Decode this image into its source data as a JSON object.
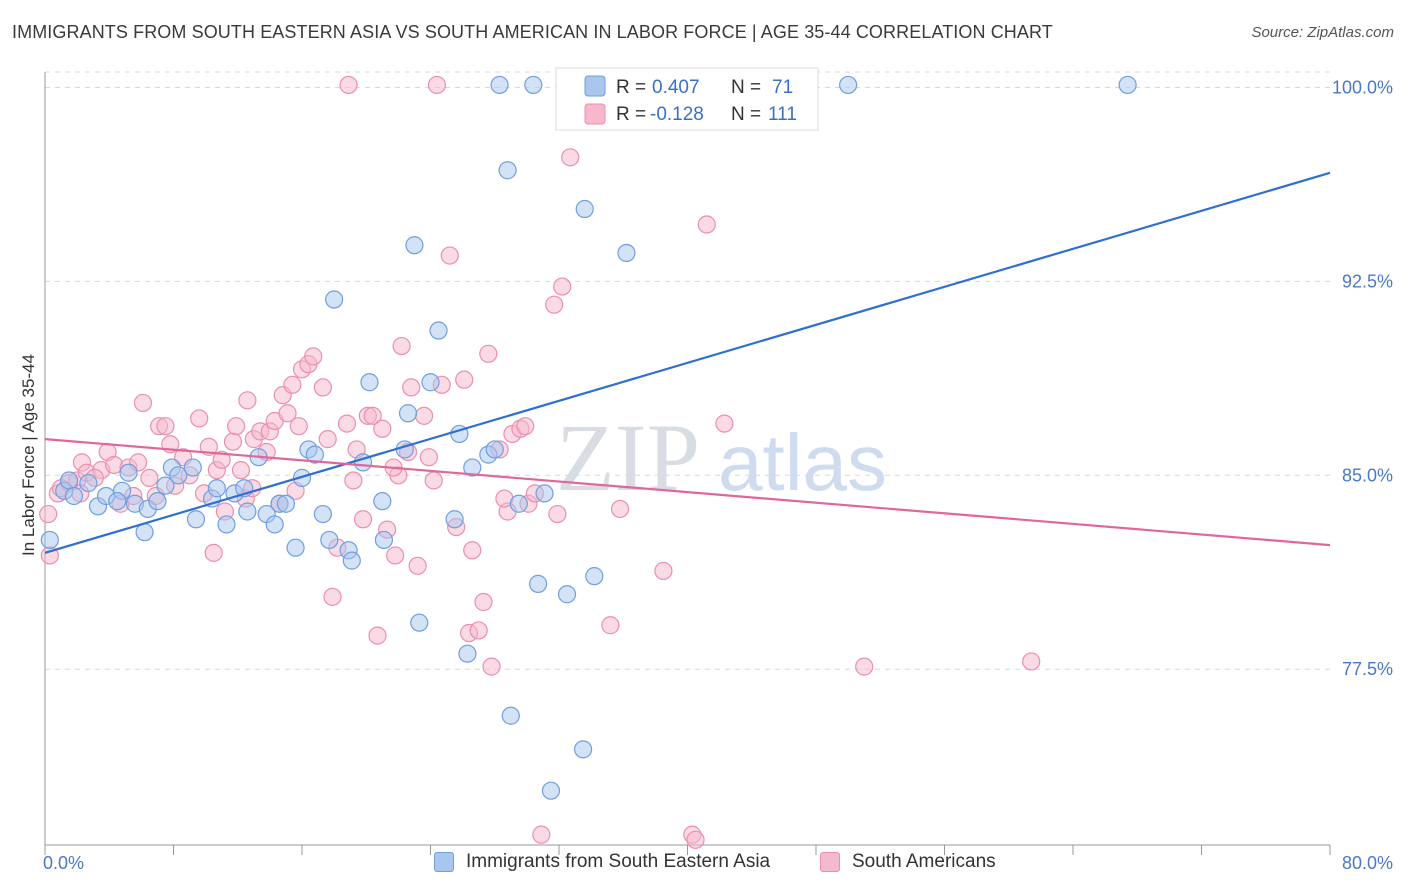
{
  "title": "IMMIGRANTS FROM SOUTH EASTERN ASIA VS SOUTH AMERICAN IN LABOR FORCE | AGE 35-44 CORRELATION CHART",
  "source": "Source: ZipAtlas.com",
  "watermark": {
    "zip": "ZIP",
    "atlas": "atlas"
  },
  "colors": {
    "blue_fill": "#a9c6ee",
    "blue_stroke": "#6f9fe0",
    "blue_line": "#2f6fd0",
    "pink_fill": "#f6b8cb",
    "pink_stroke": "#ec8fac",
    "pink_line": "#e0679a",
    "tick": "#4a78c8",
    "grid": "#d8d8d8"
  },
  "legend": {
    "blue": {
      "r_label": "R =",
      "r_value": "0.407",
      "n_label": "N =",
      "n_value": "71"
    },
    "pink": {
      "r_label": "R =",
      "r_value": "-0.128",
      "n_label": "N =",
      "n_value": "111"
    }
  },
  "chart_data": {
    "type": "scatter",
    "xlabel": "",
    "ylabel": "In Labor Force | Age 35-44",
    "xlim": [
      0,
      80
    ],
    "ylim": [
      70.7,
      100.6
    ],
    "x_tick_labels": [
      "0.0%",
      "80.0%"
    ],
    "y_ticks": [
      77.5,
      85.0,
      92.5,
      100.0
    ],
    "y_tick_labels": [
      "77.5%",
      "85.0%",
      "92.5%",
      "100.0%"
    ],
    "grid": true,
    "legend_position": "top-center",
    "series": [
      {
        "name": "Immigrants from South Eastern Asia",
        "color": "blue",
        "trend": [
          [
            0,
            82.0
          ],
          [
            80,
            96.7
          ]
        ],
        "points": [
          [
            0.3,
            82.5
          ],
          [
            1.2,
            84.4
          ],
          [
            1.5,
            84.8
          ],
          [
            1.8,
            84.2
          ],
          [
            2.7,
            84.7
          ],
          [
            3.3,
            83.8
          ],
          [
            3.8,
            84.2
          ],
          [
            4.8,
            84.4
          ],
          [
            5.2,
            85.1
          ],
          [
            5.6,
            83.9
          ],
          [
            6.2,
            82.8
          ],
          [
            6.4,
            83.7
          ],
          [
            7.0,
            84.0
          ],
          [
            7.9,
            85.3
          ],
          [
            8.3,
            85.0
          ],
          [
            9.2,
            85.3
          ],
          [
            9.4,
            83.3
          ],
          [
            10.4,
            84.1
          ],
          [
            10.7,
            84.5
          ],
          [
            11.3,
            83.1
          ],
          [
            11.8,
            84.3
          ],
          [
            12.4,
            84.5
          ],
          [
            12.6,
            83.6
          ],
          [
            13.3,
            85.7
          ],
          [
            13.8,
            83.5
          ],
          [
            14.3,
            83.1
          ],
          [
            14.6,
            83.9
          ],
          [
            15.0,
            83.9
          ],
          [
            15.6,
            82.2
          ],
          [
            16.4,
            86.0
          ],
          [
            16.8,
            85.8
          ],
          [
            17.3,
            83.5
          ],
          [
            17.7,
            82.5
          ],
          [
            18.0,
            91.8
          ],
          [
            18.9,
            82.1
          ],
          [
            19.1,
            81.7
          ],
          [
            19.8,
            85.5
          ],
          [
            20.2,
            88.6
          ],
          [
            21.0,
            84.0
          ],
          [
            21.1,
            82.5
          ],
          [
            22.4,
            86.0
          ],
          [
            22.6,
            87.4
          ],
          [
            23.0,
            93.9
          ],
          [
            23.3,
            79.3
          ],
          [
            24.0,
            88.6
          ],
          [
            24.5,
            90.6
          ],
          [
            25.5,
            83.3
          ],
          [
            25.8,
            86.6
          ],
          [
            26.3,
            78.1
          ],
          [
            26.6,
            85.3
          ],
          [
            27.6,
            85.8
          ],
          [
            28.0,
            86.0
          ],
          [
            28.3,
            100.1
          ],
          [
            28.8,
            96.8
          ],
          [
            29.0,
            75.7
          ],
          [
            29.5,
            83.9
          ],
          [
            30.4,
            100.1
          ],
          [
            30.7,
            80.8
          ],
          [
            31.1,
            84.3
          ],
          [
            31.5,
            72.8
          ],
          [
            32.5,
            80.4
          ],
          [
            33.5,
            74.4
          ],
          [
            33.6,
            95.3
          ],
          [
            34.2,
            81.1
          ],
          [
            36.2,
            93.6
          ],
          [
            40.7,
            100.1
          ],
          [
            50.0,
            100.1
          ],
          [
            67.4,
            100.1
          ],
          [
            4.5,
            84.0
          ],
          [
            7.5,
            84.6
          ],
          [
            16.0,
            84.9
          ]
        ]
      },
      {
        "name": "South Americans",
        "color": "pink",
        "trend": [
          [
            0,
            86.4
          ],
          [
            80,
            82.3
          ]
        ],
        "points": [
          [
            0.2,
            83.5
          ],
          [
            0.3,
            81.9
          ],
          [
            0.8,
            84.3
          ],
          [
            1.5,
            84.7
          ],
          [
            2.0,
            84.8
          ],
          [
            2.2,
            84.3
          ],
          [
            2.3,
            85.5
          ],
          [
            2.6,
            85.1
          ],
          [
            3.5,
            85.2
          ],
          [
            3.9,
            85.9
          ],
          [
            4.3,
            85.4
          ],
          [
            4.7,
            83.9
          ],
          [
            5.2,
            85.3
          ],
          [
            5.8,
            85.5
          ],
          [
            6.1,
            87.8
          ],
          [
            6.5,
            84.9
          ],
          [
            7.1,
            86.9
          ],
          [
            7.5,
            86.9
          ],
          [
            7.8,
            86.2
          ],
          [
            8.6,
            85.7
          ],
          [
            9.0,
            85.0
          ],
          [
            9.6,
            87.2
          ],
          [
            10.2,
            86.1
          ],
          [
            10.5,
            82.0
          ],
          [
            10.7,
            85.2
          ],
          [
            11.2,
            83.6
          ],
          [
            11.7,
            86.3
          ],
          [
            11.9,
            86.9
          ],
          [
            12.2,
            85.2
          ],
          [
            12.5,
            84.1
          ],
          [
            12.6,
            87.9
          ],
          [
            13.0,
            86.4
          ],
          [
            13.4,
            86.7
          ],
          [
            13.8,
            85.9
          ],
          [
            14.0,
            86.7
          ],
          [
            14.3,
            87.1
          ],
          [
            14.6,
            83.9
          ],
          [
            14.8,
            88.1
          ],
          [
            15.1,
            87.4
          ],
          [
            15.4,
            88.5
          ],
          [
            15.8,
            86.9
          ],
          [
            16.0,
            89.1
          ],
          [
            16.4,
            89.3
          ],
          [
            16.7,
            89.6
          ],
          [
            17.3,
            88.4
          ],
          [
            17.6,
            86.4
          ],
          [
            17.9,
            80.3
          ],
          [
            18.2,
            82.2
          ],
          [
            18.8,
            87.0
          ],
          [
            19.4,
            86.0
          ],
          [
            19.8,
            83.3
          ],
          [
            20.1,
            87.3
          ],
          [
            20.4,
            87.3
          ],
          [
            20.7,
            78.8
          ],
          [
            21.0,
            86.8
          ],
          [
            21.3,
            82.9
          ],
          [
            21.8,
            81.9
          ],
          [
            22.0,
            85.0
          ],
          [
            22.2,
            90.0
          ],
          [
            22.6,
            85.9
          ],
          [
            22.8,
            88.4
          ],
          [
            23.2,
            81.5
          ],
          [
            23.6,
            87.3
          ],
          [
            23.9,
            85.7
          ],
          [
            24.2,
            84.8
          ],
          [
            24.7,
            88.5
          ],
          [
            25.2,
            93.5
          ],
          [
            25.6,
            83.0
          ],
          [
            26.1,
            88.7
          ],
          [
            26.6,
            82.1
          ],
          [
            26.4,
            78.9
          ],
          [
            27.0,
            79.0
          ],
          [
            27.3,
            80.1
          ],
          [
            27.6,
            89.7
          ],
          [
            27.8,
            77.6
          ],
          [
            28.3,
            86.0
          ],
          [
            28.8,
            83.6
          ],
          [
            29.1,
            86.6
          ],
          [
            29.6,
            86.8
          ],
          [
            29.9,
            86.9
          ],
          [
            30.1,
            83.9
          ],
          [
            30.5,
            84.3
          ],
          [
            30.9,
            71.1
          ],
          [
            31.7,
            91.6
          ],
          [
            31.9,
            83.5
          ],
          [
            32.2,
            92.3
          ],
          [
            32.7,
            97.3
          ],
          [
            33.3,
            100.1
          ],
          [
            35.2,
            79.2
          ],
          [
            35.8,
            83.7
          ],
          [
            38.5,
            81.3
          ],
          [
            40.3,
            71.1
          ],
          [
            40.5,
            70.9
          ],
          [
            41.2,
            94.7
          ],
          [
            42.3,
            87.0
          ],
          [
            51.0,
            77.6
          ],
          [
            61.4,
            77.8
          ],
          [
            18.9,
            100.1
          ],
          [
            24.4,
            100.1
          ],
          [
            8.1,
            84.6
          ],
          [
            6.9,
            84.2
          ],
          [
            9.9,
            84.3
          ],
          [
            12.9,
            84.5
          ],
          [
            15.6,
            84.4
          ],
          [
            19.2,
            84.8
          ],
          [
            21.7,
            85.3
          ],
          [
            3.1,
            84.9
          ],
          [
            5.5,
            84.2
          ],
          [
            1.0,
            84.5
          ],
          [
            11.0,
            85.6
          ],
          [
            28.6,
            84.1
          ]
        ]
      }
    ]
  },
  "bottom_legend": {
    "blue_label": "Immigrants from South Eastern Asia",
    "pink_label": "South Americans"
  }
}
